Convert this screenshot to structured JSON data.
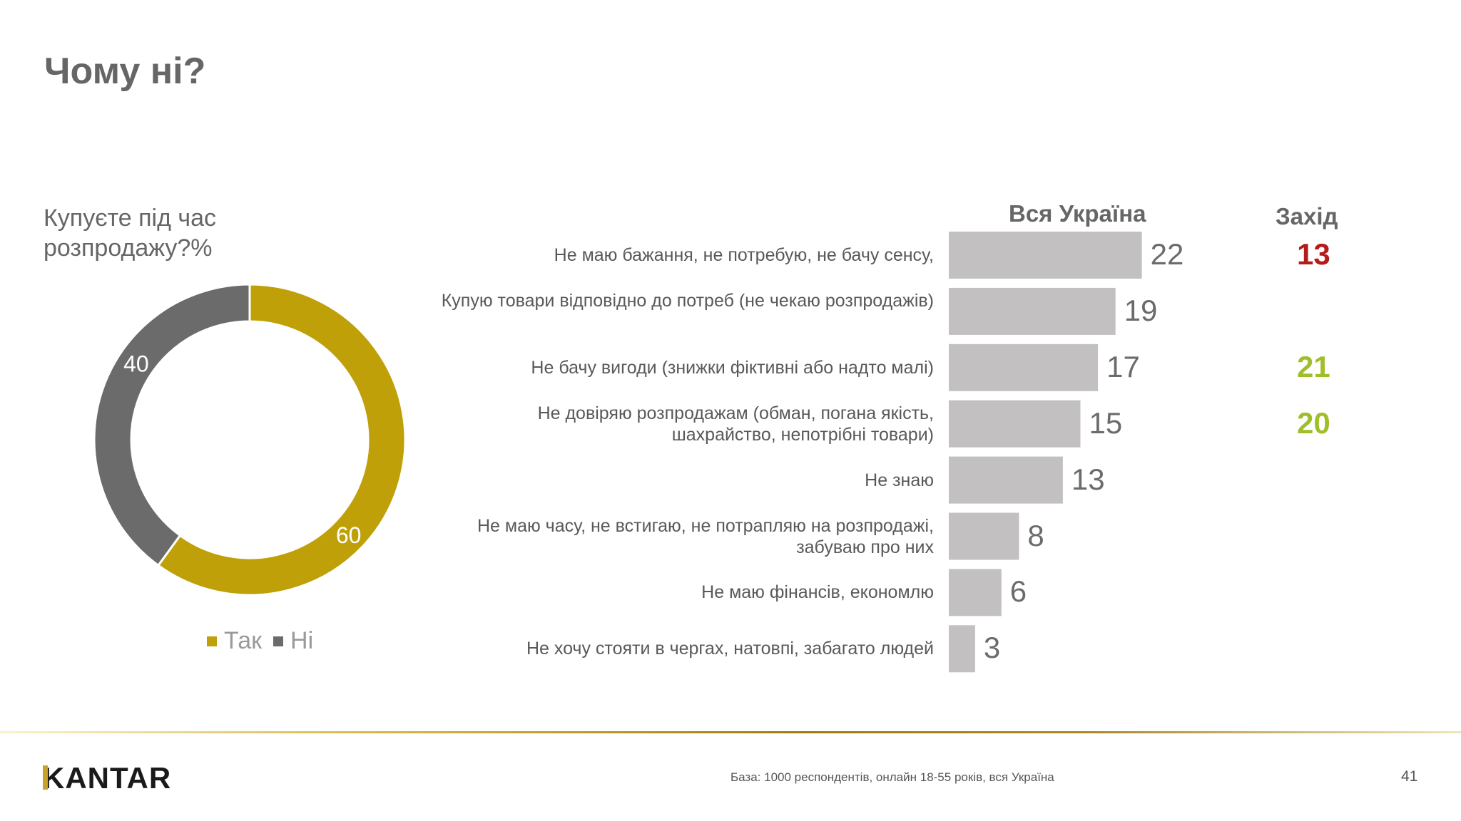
{
  "title": "Чому ні?",
  "donut": {
    "question": "Купуєте під час розпродажу?%",
    "legend": [
      "Так",
      "Ні"
    ]
  },
  "columns": {
    "all": "Вся Україна",
    "west": "Захід"
  },
  "footer": {
    "logo": "KANTAR",
    "note": "База: 1000 респондентів, онлайн 18-55 років, вся Україна",
    "page": "41"
  },
  "colors": {
    "gold": "#bfa008",
    "grey": "#6b6b6b",
    "bar": "#c2c0c1",
    "red": "#b61b1b",
    "green": "#9fbf28"
  },
  "chart_data": [
    {
      "type": "pie",
      "categories": [
        "Так",
        "Ні"
      ],
      "values": [
        60,
        40
      ],
      "legend": "bottom"
    },
    {
      "type": "bar",
      "categories": [
        "Не маю бажання, не потребую, не бачу сенсу,",
        "Купую товари відповідно до потреб (не чекаю розпродажів)",
        "Не бачу вигоди (знижки фіктивні або надто малі)",
        "Не довіряю розпродажам (обман, погана якість, шахрайство, непотрібні товари)",
        "Не знаю",
        "Не маю часу, не встигаю, не потрапляю на розпродажі, забуваю про них",
        "Не маю фінансів, економлю",
        "Не хочу стояти в чергах, натовпі, забагато людей"
      ],
      "series": [
        {
          "name": "Вся Україна",
          "values": [
            22,
            19,
            17,
            15,
            13,
            8,
            6,
            3
          ]
        },
        {
          "name": "Захід",
          "values": [
            13,
            null,
            21,
            20,
            null,
            null,
            null,
            null
          ]
        }
      ]
    }
  ]
}
